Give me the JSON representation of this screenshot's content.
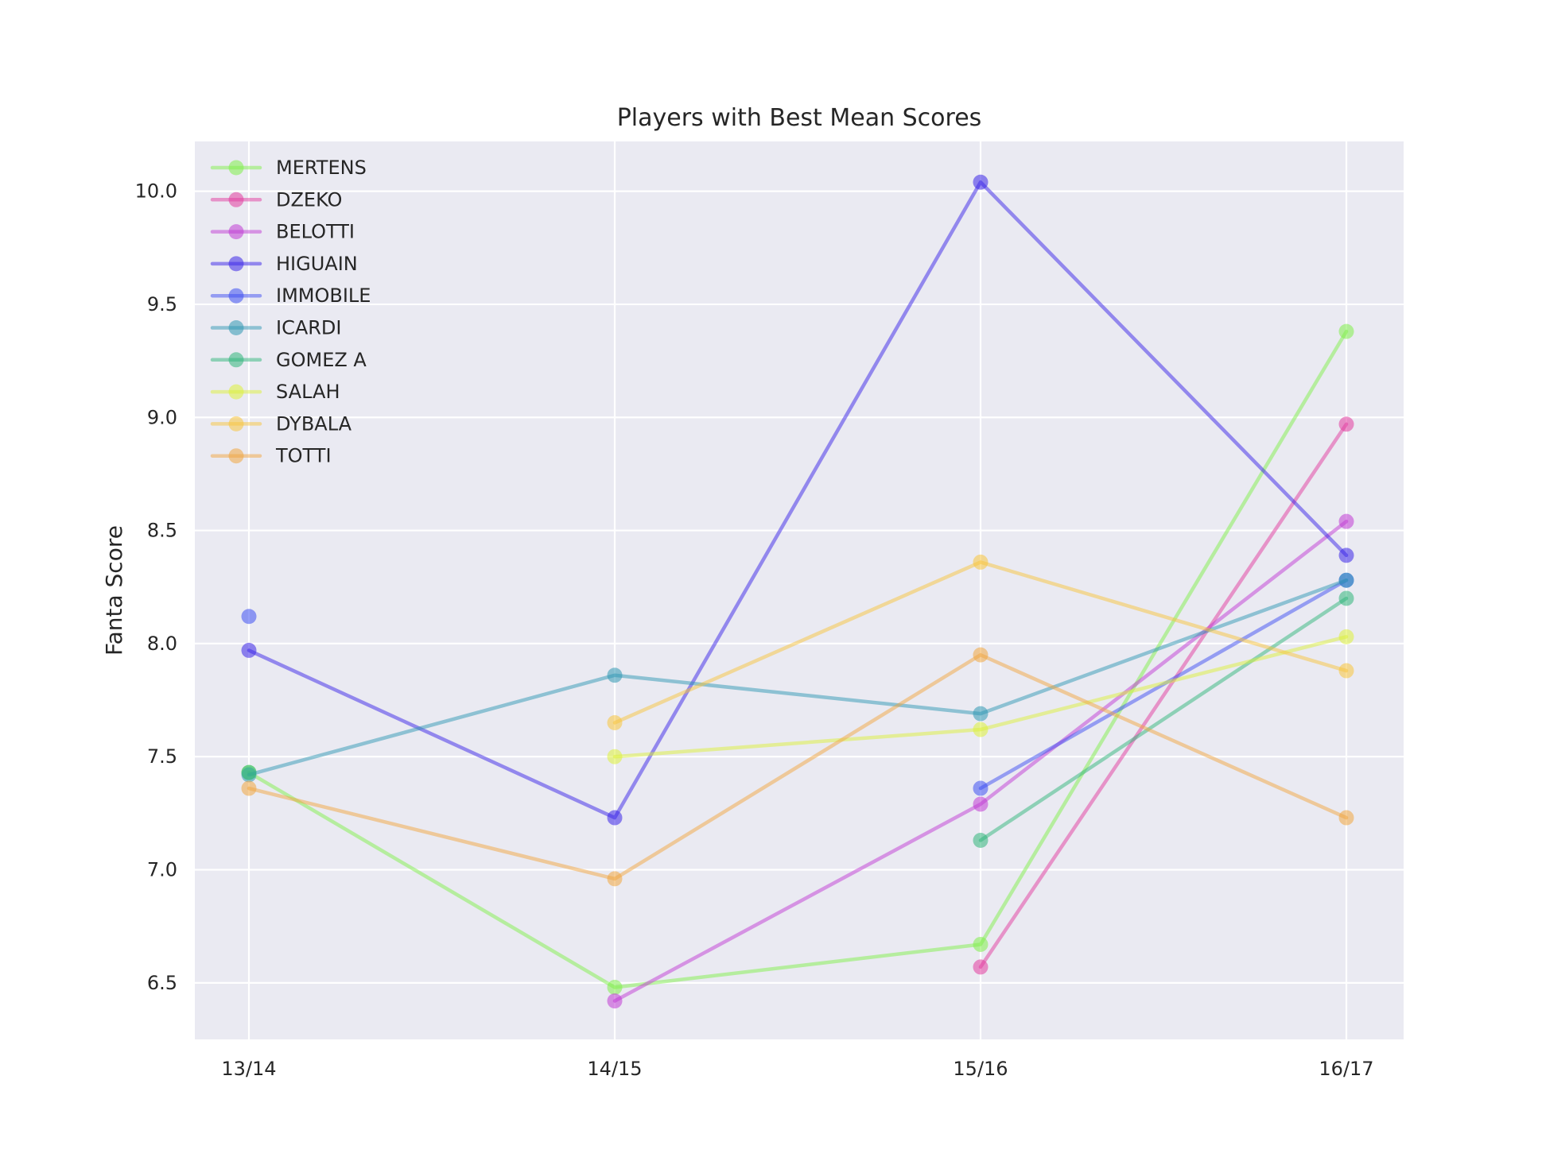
{
  "chart_data": {
    "type": "line",
    "title": "Players with Best Mean Scores",
    "xlabel": "",
    "ylabel": "Fanta Score",
    "categories": [
      "13/14",
      "14/15",
      "15/16",
      "16/17"
    ],
    "yticks": [
      "6.5",
      "7.0",
      "7.5",
      "8.0",
      "8.5",
      "9.0",
      "9.5",
      "10.0"
    ],
    "ylim": [
      6.25,
      10.22
    ],
    "grid": true,
    "legend_position": "upper-left",
    "series": [
      {
        "name": "MERTENS",
        "color": "#7fef4a",
        "values": [
          7.43,
          6.48,
          6.67,
          9.38
        ]
      },
      {
        "name": "DZEKO",
        "color": "#e23a9e",
        "values": [
          null,
          null,
          6.57,
          8.97
        ]
      },
      {
        "name": "BELOTTI",
        "color": "#c03ad4",
        "values": [
          null,
          6.42,
          7.29,
          8.54
        ]
      },
      {
        "name": "HIGUAIN",
        "color": "#3a24e8",
        "values": [
          7.97,
          7.23,
          10.04,
          8.39
        ]
      },
      {
        "name": "IMMOBILE",
        "color": "#3d4ef2",
        "values": [
          8.12,
          null,
          7.36,
          8.28
        ]
      },
      {
        "name": "ICARDI",
        "color": "#2f97b3",
        "values": [
          7.42,
          7.86,
          7.69,
          8.28
        ]
      },
      {
        "name": "GOMEZ A",
        "color": "#2fb57a",
        "values": [
          7.43,
          null,
          7.13,
          8.2
        ]
      },
      {
        "name": "SALAH",
        "color": "#dcf03a",
        "values": [
          null,
          7.5,
          7.62,
          8.03
        ]
      },
      {
        "name": "DYBALA",
        "color": "#f7c43c",
        "values": [
          null,
          7.65,
          8.36,
          7.88
        ]
      },
      {
        "name": "TOTTI",
        "color": "#f1a540",
        "values": [
          7.36,
          6.96,
          7.95,
          7.23
        ]
      }
    ]
  }
}
